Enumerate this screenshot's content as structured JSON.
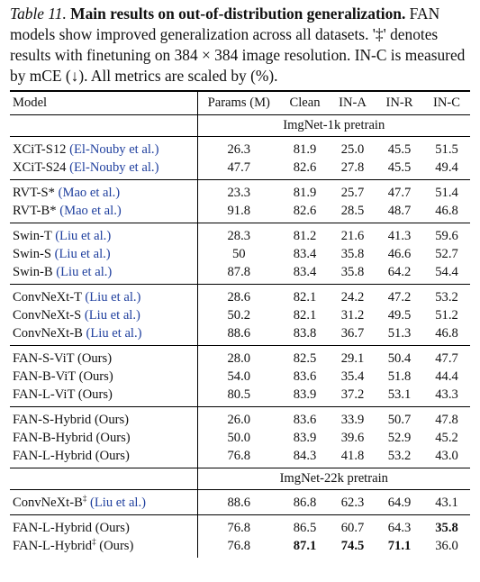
{
  "caption": {
    "label": "Table 11.",
    "title": "Main results on out-of-distribution generalization.",
    "body": "FAN models show improved generalization across all datasets. '‡' denotes results with finetuning on 384 × 384 image resolution. IN-C is measured by mCE (↓). All metrics are scaled by (%)."
  },
  "columns": [
    "Model",
    "Params (M)",
    "Clean",
    "IN-A",
    "IN-R",
    "IN-C"
  ],
  "sections": [
    {
      "header": "ImgNet-1k  pretrain",
      "groups": [
        [
          {
            "name": "XCiT-S12",
            "cite": "(El-Nouby et al.)",
            "sup": "",
            "values": [
              "26.3",
              "81.9",
              "25.0",
              "45.5",
              "51.5"
            ]
          },
          {
            "name": "XCiT-S24",
            "cite": "(El-Nouby et al.)",
            "sup": "",
            "values": [
              "47.7",
              "82.6",
              "27.8",
              "45.5",
              "49.4"
            ]
          }
        ],
        [
          {
            "name": "RVT-S*",
            "cite": "(Mao et al.)",
            "sup": "",
            "values": [
              "23.3",
              "81.9",
              "25.7",
              "47.7",
              "51.4"
            ]
          },
          {
            "name": "RVT-B*",
            "cite": "(Mao et al.)",
            "sup": "",
            "values": [
              "91.8",
              "82.6",
              "28.5",
              "48.7",
              "46.8"
            ]
          }
        ],
        [
          {
            "name": "Swin-T",
            "cite": "(Liu et al.)",
            "sup": "",
            "values": [
              "28.3",
              "81.2",
              "21.6",
              "41.3",
              "59.6"
            ]
          },
          {
            "name": "Swin-S",
            "cite": "(Liu et al.)",
            "sup": "",
            "values": [
              "50",
              "83.4",
              "35.8",
              "46.6",
              "52.7"
            ]
          },
          {
            "name": "Swin-B",
            "cite": "(Liu et al.)",
            "sup": "",
            "values": [
              "87.8",
              "83.4",
              "35.8",
              "64.2",
              "54.4"
            ]
          }
        ],
        [
          {
            "name": "ConvNeXt-T",
            "cite": "(Liu et al.)",
            "sup": "",
            "values": [
              "28.6",
              "82.1",
              "24.2",
              "47.2",
              "53.2"
            ]
          },
          {
            "name": "ConvNeXt-S",
            "cite": "(Liu et al.)",
            "sup": "",
            "values": [
              "50.2",
              "82.1",
              "31.2",
              "49.5",
              "51.2"
            ]
          },
          {
            "name": "ConvNeXt-B",
            "cite": "(Liu et al.)",
            "sup": "",
            "values": [
              "88.6",
              "83.8",
              "36.7",
              "51.3",
              "46.8"
            ]
          }
        ],
        [
          {
            "name": "FAN-S-ViT (Ours)",
            "cite": "",
            "sup": "",
            "values": [
              "28.0",
              "82.5",
              "29.1",
              "50.4",
              "47.7"
            ]
          },
          {
            "name": "FAN-B-ViT (Ours)",
            "cite": "",
            "sup": "",
            "values": [
              "54.0",
              "83.6",
              "35.4",
              "51.8",
              "44.4"
            ]
          },
          {
            "name": "FAN-L-ViT (Ours)",
            "cite": "",
            "sup": "",
            "values": [
              "80.5",
              "83.9",
              "37.2",
              "53.1",
              "43.3"
            ]
          }
        ],
        [
          {
            "name": "FAN-S-Hybrid (Ours)",
            "cite": "",
            "sup": "",
            "values": [
              "26.0",
              "83.6",
              "33.9",
              "50.7",
              "47.8"
            ]
          },
          {
            "name": "FAN-B-Hybrid (Ours)",
            "cite": "",
            "sup": "",
            "values": [
              "50.0",
              "83.9",
              "39.6",
              "52.9",
              "45.2"
            ]
          },
          {
            "name": "FAN-L-Hybrid (Ours)",
            "cite": "",
            "sup": "",
            "values": [
              "76.8",
              "84.3",
              "41.8",
              "53.2",
              "43.0"
            ]
          }
        ]
      ]
    },
    {
      "header": "ImgNet-22k  pretrain",
      "groups": [
        [
          {
            "name": "ConvNeXt-B",
            "cite": "(Liu et al.)",
            "sup": "‡",
            "values": [
              "88.6",
              "86.8",
              "62.3",
              "64.9",
              "43.1"
            ]
          }
        ],
        [
          {
            "name": "FAN-L-Hybrid (Ours)",
            "cite": "",
            "sup": "",
            "values": [
              "76.8",
              "86.5",
              "60.7",
              "64.3",
              "35.8"
            ],
            "bold": [
              false,
              false,
              false,
              false,
              true
            ]
          },
          {
            "name": "FAN-L-Hybrid",
            "suffix": " (Ours)",
            "cite": "",
            "sup": "‡",
            "values": [
              "76.8",
              "87.1",
              "74.5",
              "71.1",
              "36.0"
            ],
            "bold": [
              false,
              true,
              true,
              true,
              false
            ]
          }
        ]
      ]
    }
  ]
}
